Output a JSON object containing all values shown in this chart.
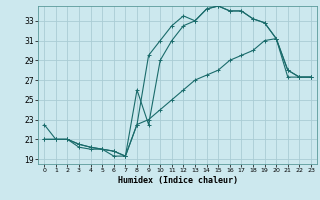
{
  "title": "",
  "xlabel": "Humidex (Indice chaleur)",
  "background_color": "#cce8ee",
  "grid_color": "#aaccd4",
  "line_color": "#1a6b6b",
  "xlim": [
    -0.5,
    23.5
  ],
  "ylim": [
    18.5,
    34.5
  ],
  "xticks": [
    0,
    1,
    2,
    3,
    4,
    5,
    6,
    7,
    8,
    9,
    10,
    11,
    12,
    13,
    14,
    15,
    16,
    17,
    18,
    19,
    20,
    21,
    22,
    23
  ],
  "yticks": [
    19,
    21,
    23,
    25,
    27,
    29,
    31,
    33
  ],
  "line1_x": [
    0,
    1,
    2,
    3,
    4,
    5,
    6,
    7,
    8,
    9,
    10,
    11,
    12,
    13,
    14,
    15,
    16,
    17,
    18,
    19,
    20,
    21,
    22,
    23
  ],
  "line1_y": [
    22.5,
    21.0,
    21.0,
    20.2,
    20.0,
    20.0,
    19.3,
    19.3,
    22.5,
    29.5,
    31.0,
    32.5,
    33.5,
    33.0,
    34.2,
    34.5,
    34.0,
    34.0,
    33.2,
    32.8,
    31.2,
    28.0,
    27.3,
    27.3
  ],
  "line2_x": [
    0,
    1,
    2,
    3,
    4,
    5,
    6,
    7,
    8,
    9,
    10,
    11,
    12,
    13,
    14,
    15,
    16,
    17,
    18,
    19,
    20,
    21,
    22,
    23
  ],
  "line2_y": [
    21.0,
    21.0,
    21.0,
    20.5,
    20.2,
    20.0,
    19.8,
    19.3,
    26.0,
    22.5,
    29.0,
    31.0,
    32.5,
    33.0,
    34.2,
    34.5,
    34.0,
    34.0,
    33.2,
    32.8,
    31.2,
    28.0,
    27.3,
    27.3
  ],
  "line3_x": [
    0,
    1,
    2,
    3,
    4,
    5,
    6,
    7,
    8,
    9,
    10,
    11,
    12,
    13,
    14,
    15,
    16,
    17,
    18,
    19,
    20,
    21,
    22,
    23
  ],
  "line3_y": [
    21.0,
    21.0,
    21.0,
    20.5,
    20.2,
    20.0,
    19.8,
    19.3,
    22.5,
    23.0,
    24.0,
    25.0,
    26.0,
    27.0,
    27.5,
    28.0,
    29.0,
    29.5,
    30.0,
    31.0,
    31.2,
    27.3,
    27.3,
    27.3
  ]
}
